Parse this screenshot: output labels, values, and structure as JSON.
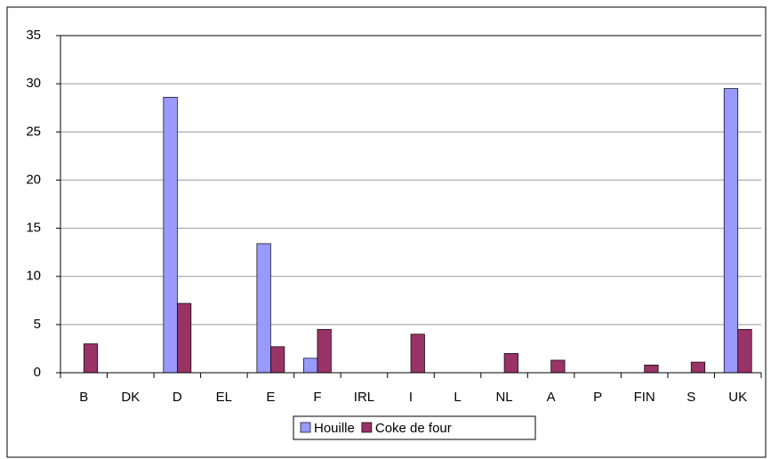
{
  "chart_data": {
    "type": "bar",
    "categories": [
      "B",
      "DK",
      "D",
      "EL",
      "E",
      "F",
      "IRL",
      "I",
      "L",
      "NL",
      "A",
      "P",
      "FIN",
      "S",
      "UK"
    ],
    "series": [
      {
        "name": "Houille",
        "color": "#9999ff",
        "values": [
          0,
          0,
          28.6,
          0,
          13.4,
          1.5,
          0,
          0,
          0,
          0,
          0,
          0,
          0,
          0,
          29.5
        ]
      },
      {
        "name": "Coke de four",
        "color": "#993366",
        "values": [
          3.0,
          0,
          7.2,
          0,
          2.7,
          4.5,
          0,
          4.0,
          0,
          2.0,
          1.3,
          0,
          0.8,
          1.1,
          4.5
        ]
      }
    ],
    "ylim": [
      0,
      35
    ],
    "yticks": [
      0,
      5,
      10,
      15,
      20,
      25,
      30,
      35
    ],
    "grid": true,
    "legend": "bottom"
  }
}
